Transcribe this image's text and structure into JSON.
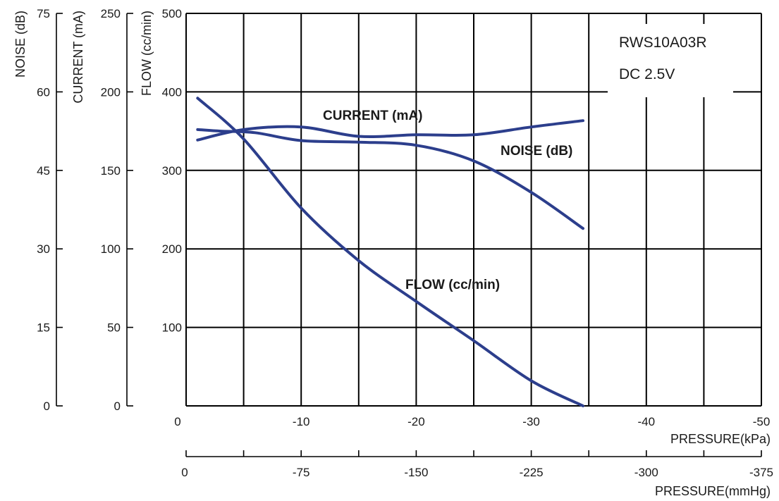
{
  "chart_data": {
    "type": "line",
    "title": "",
    "info_lines": [
      "RWS10A03R",
      "DC 2.5V"
    ],
    "x_axis": {
      "label": "PRESSURE(kPa)",
      "ticks": [
        "0",
        "-10",
        "-20",
        "-30",
        "-40",
        "-50"
      ],
      "range": [
        0,
        -50
      ]
    },
    "x2_axis": {
      "label": "PRESSURE(mmHg)",
      "ticks": [
        "0",
        "-75",
        "-150",
        "-225",
        "-300",
        "-375"
      ],
      "range": [
        0,
        -375
      ]
    },
    "y_axes": [
      {
        "key": "flow",
        "label": "FLOW (cc/min)",
        "ticks": [
          "500",
          "400",
          "300",
          "200",
          "100"
        ],
        "range": [
          0,
          500
        ]
      },
      {
        "key": "current",
        "label": "CURRENT (mA)",
        "ticks": [
          "250",
          "200",
          "150",
          "100",
          "50",
          "0"
        ],
        "range": [
          0,
          250
        ]
      },
      {
        "key": "noise",
        "label": "NOISE (dB)",
        "ticks": [
          "75",
          "60",
          "45",
          "30",
          "15",
          "0"
        ],
        "range": [
          0,
          75
        ]
      }
    ],
    "grid": true,
    "series": [
      {
        "name": "FLOW (cc/min)",
        "axis": "flow",
        "points": [
          [
            -1,
            392
          ],
          [
            -5,
            340
          ],
          [
            -10,
            252
          ],
          [
            -15,
            185
          ],
          [
            -20,
            133
          ],
          [
            -25,
            83
          ],
          [
            -30,
            32
          ],
          [
            -34.5,
            0
          ]
        ]
      },
      {
        "name": "CURRENT (mA)",
        "axis": "current",
        "points": [
          [
            -1,
            176
          ],
          [
            -3,
            175
          ],
          [
            -6,
            174
          ],
          [
            -10,
            169
          ],
          [
            -15,
            168
          ],
          [
            -20,
            166
          ],
          [
            -25,
            156
          ],
          [
            -30,
            136
          ],
          [
            -34.5,
            113
          ]
        ]
      },
      {
        "name": "NOISE (dB)",
        "axis": "noise",
        "points": [
          [
            -1,
            50.8
          ],
          [
            -5,
            52.8
          ],
          [
            -10,
            53.3
          ],
          [
            -15,
            51.5
          ],
          [
            -20,
            51.8
          ],
          [
            -25,
            51.8
          ],
          [
            -30,
            53.3
          ],
          [
            -34.5,
            54.5
          ]
        ]
      }
    ],
    "curve_labels": [
      {
        "series": "CURRENT (mA)",
        "text": "CURRENT (mA)"
      },
      {
        "series": "NOISE (dB)",
        "text": "NOISE (dB)"
      },
      {
        "series": "FLOW (cc/min)",
        "text": "FLOW (cc/min)"
      }
    ],
    "colors": {
      "curve": "#2c3e8c",
      "grid": "#000000"
    }
  }
}
